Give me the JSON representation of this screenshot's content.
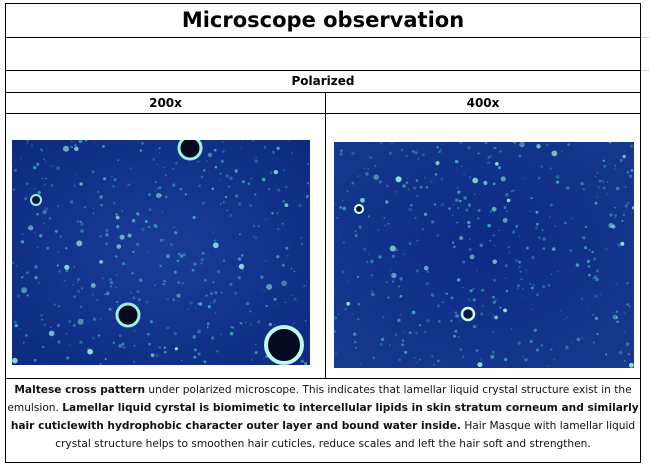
{
  "header": {
    "title": "Microscope observation"
  },
  "table": {
    "section": "Polarized",
    "columns": [
      "200x",
      "400x"
    ]
  },
  "description": [
    {
      "text": "Maltese cross pattern",
      "bold": true
    },
    {
      "text": " under polarized microscope. This indicates that lamellar liquid crystal structure exist in the emulsion. ",
      "bold": false
    },
    {
      "text": "Lamellar liquid cyrstal is biomimetic to intercellular lipids in skin stratum corneum and similarly hair cuticlewith hydrophobic character outer layer and bound water inside.",
      "bold": true
    },
    {
      "text": " Hair Masque with lamellar liquid crystal structure helps to smoothen hair cuticles, reduce scales and left the hair soft and strengthen.",
      "bold": false
    }
  ]
}
